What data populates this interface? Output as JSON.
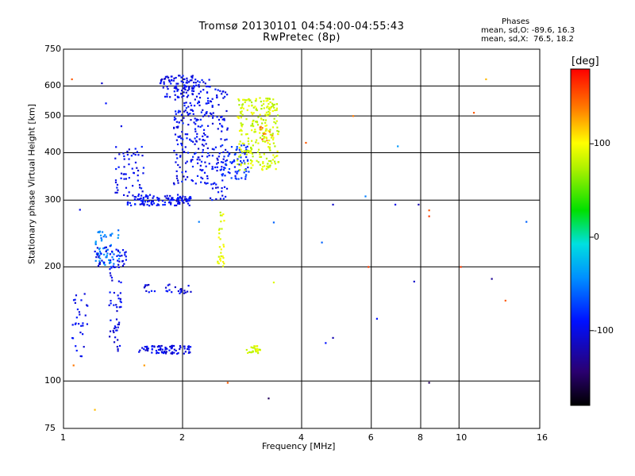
{
  "chart_data": {
    "type": "scatter",
    "title": "Tromsø 20130101 04:54:00-04:55:43",
    "subtitle": "RwPretec (8p)",
    "xlabel": "Frequency [MHz]",
    "ylabel": "Stationary phase Virtual Height [km]",
    "x_scale": "log",
    "y_scale": "log",
    "xlim": [
      1,
      16
    ],
    "ylim": [
      75,
      750
    ],
    "xticks": [
      1,
      2,
      4,
      6,
      8,
      10,
      16
    ],
    "yticks": [
      75,
      100,
      200,
      300,
      400,
      500,
      600,
      750
    ],
    "grid": true,
    "stats": {
      "heading": "Phases",
      "o_line": "mean, sd,O: -89.6, 16.3",
      "x_line": "mean, sd,X:  76.5, 18.2"
    },
    "colorbar": {
      "unit": "[deg]",
      "range": [
        -180,
        180
      ],
      "ticks": [
        100,
        0,
        -100
      ],
      "placement": "right"
    },
    "clusters": [
      {
        "name": "o-trace-upper-a",
        "x": [
          1.45,
          2.1
        ],
        "y": [
          290,
          310
        ],
        "phase": -95,
        "n": 120
      },
      {
        "name": "o-trace-upper-b",
        "x": [
          1.35,
          1.6
        ],
        "y": [
          300,
          420
        ],
        "phase": -95,
        "n": 60
      },
      {
        "name": "o-trace-lower-arc",
        "x": [
          1.9,
          2.35
        ],
        "y": [
          330,
          640
        ],
        "phase": -95,
        "n": 220
      },
      {
        "name": "o-trace-top",
        "x": [
          1.75,
          2.2
        ],
        "y": [
          560,
          640
        ],
        "phase": -100,
        "n": 80
      },
      {
        "name": "o-trace-col",
        "x": [
          2.35,
          2.6
        ],
        "y": [
          300,
          600
        ],
        "phase": -95,
        "n": 90
      },
      {
        "name": "o-trace-mid",
        "x": [
          2.5,
          2.95
        ],
        "y": [
          340,
          420
        ],
        "phase": -80,
        "n": 70
      },
      {
        "name": "x-trace-green",
        "x": [
          2.75,
          3.5
        ],
        "y": [
          360,
          560
        ],
        "phase": 85,
        "n": 250
      },
      {
        "name": "x-trace-orange",
        "x": [
          3.1,
          3.4
        ],
        "y": [
          430,
          470
        ],
        "phase": 140,
        "n": 10
      },
      {
        "name": "es-o-120",
        "x": [
          1.55,
          2.1
        ],
        "y": [
          118,
          124
        ],
        "phase": -100,
        "n": 80
      },
      {
        "name": "es-x-120",
        "x": [
          2.9,
          3.15
        ],
        "y": [
          118,
          124
        ],
        "phase": 85,
        "n": 25
      },
      {
        "name": "es-o-175",
        "x": [
          1.6,
          2.1
        ],
        "y": [
          170,
          180
        ],
        "phase": -100,
        "n": 30
      },
      {
        "name": "f1-o-cyan",
        "x": [
          1.2,
          1.4
        ],
        "y": [
          200,
          250
        ],
        "phase": -50,
        "n": 60
      },
      {
        "name": "f1-o-blue",
        "x": [
          1.2,
          1.45
        ],
        "y": [
          200,
          230
        ],
        "phase": -100,
        "n": 40
      },
      {
        "name": "lower-col-a",
        "x": [
          1.3,
          1.4
        ],
        "y": [
          120,
          200
        ],
        "phase": -100,
        "n": 50
      },
      {
        "name": "lower-col-b",
        "x": [
          1.05,
          1.15
        ],
        "y": [
          115,
          170
        ],
        "phase": -95,
        "n": 30
      },
      {
        "name": "x-col-yellow",
        "x": [
          2.45,
          2.55
        ],
        "y": [
          200,
          280
        ],
        "phase": 90,
        "n": 30
      }
    ],
    "scattered_points": [
      {
        "x": 4.1,
        "y": 425,
        "phase": 150
      },
      {
        "x": 4.5,
        "y": 232,
        "phase": -60
      },
      {
        "x": 4.6,
        "y": 126,
        "phase": -90
      },
      {
        "x": 4.8,
        "y": 130,
        "phase": -120
      },
      {
        "x": 4.8,
        "y": 292,
        "phase": -110
      },
      {
        "x": 5.4,
        "y": 500,
        "phase": 140
      },
      {
        "x": 5.8,
        "y": 307,
        "phase": -50
      },
      {
        "x": 5.9,
        "y": 200,
        "phase": 160
      },
      {
        "x": 6.2,
        "y": 146,
        "phase": -90
      },
      {
        "x": 6.9,
        "y": 292,
        "phase": -100
      },
      {
        "x": 7.0,
        "y": 416,
        "phase": -40
      },
      {
        "x": 7.7,
        "y": 183,
        "phase": -110
      },
      {
        "x": 7.9,
        "y": 292,
        "phase": -120
      },
      {
        "x": 8.4,
        "y": 99,
        "phase": -150
      },
      {
        "x": 8.4,
        "y": 282,
        "phase": 150
      },
      {
        "x": 8.4,
        "y": 272,
        "phase": 160
      },
      {
        "x": 10.1,
        "y": 200,
        "phase": 160
      },
      {
        "x": 10.9,
        "y": 510,
        "phase": 150
      },
      {
        "x": 11.7,
        "y": 625,
        "phase": 120
      },
      {
        "x": 12.1,
        "y": 186,
        "phase": -130
      },
      {
        "x": 13.1,
        "y": 163,
        "phase": 150
      },
      {
        "x": 14.8,
        "y": 263,
        "phase": -60
      },
      {
        "x": 3.3,
        "y": 90,
        "phase": -150
      },
      {
        "x": 2.6,
        "y": 99,
        "phase": 150
      },
      {
        "x": 2.2,
        "y": 263,
        "phase": -50
      },
      {
        "x": 1.1,
        "y": 283,
        "phase": -100
      },
      {
        "x": 1.05,
        "y": 625,
        "phase": 150
      },
      {
        "x": 1.25,
        "y": 610,
        "phase": -110
      },
      {
        "x": 1.28,
        "y": 540,
        "phase": -90
      },
      {
        "x": 1.4,
        "y": 470,
        "phase": -100
      },
      {
        "x": 1.06,
        "y": 110,
        "phase": 140
      },
      {
        "x": 1.2,
        "y": 84,
        "phase": 120
      },
      {
        "x": 1.6,
        "y": 110,
        "phase": 130
      },
      {
        "x": 3.4,
        "y": 262,
        "phase": -60
      },
      {
        "x": 3.4,
        "y": 182,
        "phase": 90
      }
    ]
  }
}
